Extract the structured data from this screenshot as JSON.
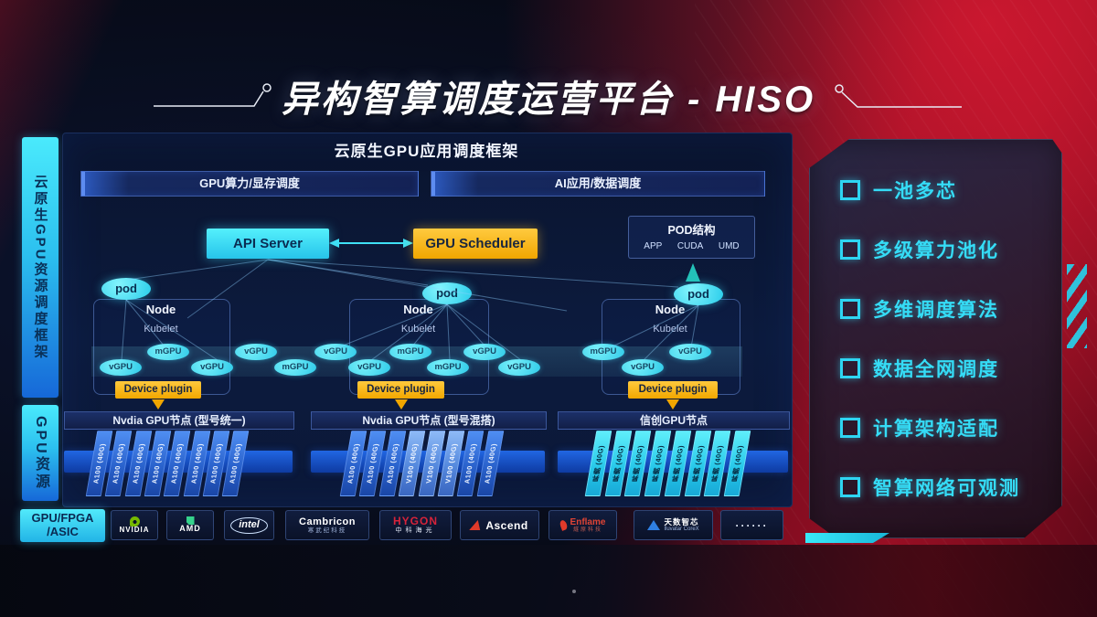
{
  "title": {
    "text": "异构智算调度运营平台 - HISO"
  },
  "sidebar": {
    "top": "云原生GPU资源调度框架",
    "bottom": "GPU资源"
  },
  "framework": {
    "header": "云原生GPU应用调度框架",
    "top_bars": [
      "GPU算力/显存调度",
      "AI应用/数据调度"
    ],
    "api_server": "API Server",
    "gpu_scheduler": "GPU Scheduler",
    "pod_box": {
      "title": "POD结构",
      "items": [
        "APP",
        "CUDA",
        "UMD"
      ]
    },
    "node_groups": [
      {
        "title": "Node",
        "agent": "Kubelet",
        "pod": "pod"
      },
      {
        "title": "Node",
        "agent": "Kubelet",
        "pod": "pod"
      },
      {
        "title": "Node",
        "agent": "Kubelet",
        "pod": "pod"
      }
    ],
    "device_plugin_label": "Device plugin",
    "gpu_units": [
      "vGPU",
      "mGPU",
      "vGPU",
      "vGPU",
      "mGPU",
      "vGPU",
      "vGPU",
      "mGPU",
      "mGPU",
      "vGPU",
      "vGPU",
      "mGPU",
      "vGPU",
      "vGPU"
    ]
  },
  "gpu_rows": [
    {
      "header": "Nvdia GPU节点 (型号统一)",
      "cards": [
        {
          "label": "A100 (40G)",
          "variant": "blue"
        },
        {
          "label": "A100 (40G)",
          "variant": "blue"
        },
        {
          "label": "A100 (40G)",
          "variant": "blue"
        },
        {
          "label": "A100 (40G)",
          "variant": "blue"
        },
        {
          "label": "A100 (40G)",
          "variant": "blue"
        },
        {
          "label": "A100 (40G)",
          "variant": "blue"
        },
        {
          "label": "A100 (40G)",
          "variant": "blue"
        },
        {
          "label": "A100 (40G)",
          "variant": "blue"
        }
      ]
    },
    {
      "header": "Nvdia GPU节点 (型号混搭)",
      "cards": [
        {
          "label": "A100 (40G)",
          "variant": "blue"
        },
        {
          "label": "A100 (40G)",
          "variant": "blue"
        },
        {
          "label": "A100 (40G)",
          "variant": "blue"
        },
        {
          "label": "V100 (40G)",
          "variant": "light"
        },
        {
          "label": "V100 (40G)",
          "variant": "light"
        },
        {
          "label": "V100 (40G)",
          "variant": "light"
        },
        {
          "label": "A100 (40G)",
          "variant": "blue"
        },
        {
          "label": "A100 (40G)",
          "variant": "blue"
        }
      ]
    },
    {
      "header": "信创GPU节点",
      "cards": [
        {
          "label": "昇腾 (40G)",
          "variant": "cyan"
        },
        {
          "label": "昇腾 (40G)",
          "variant": "cyan"
        },
        {
          "label": "昇腾 (40G)",
          "variant": "cyan"
        },
        {
          "label": "昇腾 (40G)",
          "variant": "cyan"
        },
        {
          "label": "昇腾 (40G)",
          "variant": "cyan"
        },
        {
          "label": "昇腾 (40G)",
          "variant": "cyan"
        },
        {
          "label": "昇腾 (40G)",
          "variant": "cyan"
        },
        {
          "label": "昇腾 (40G)",
          "variant": "cyan"
        }
      ]
    }
  ],
  "vendor_bar": {
    "lead": {
      "line1": "GPU/FPGA",
      "line2": "/ASIC"
    },
    "vendors": [
      {
        "type": "nvidia",
        "name": "NVIDIA"
      },
      {
        "type": "amd",
        "name": "AMD"
      },
      {
        "type": "intel",
        "name": "intel"
      },
      {
        "type": "cambricon",
        "name": "Cambricon",
        "sub": "寒武纪科技"
      },
      {
        "type": "hygon",
        "name": "HYGON",
        "sub": "中科海光"
      },
      {
        "type": "ascend",
        "name": "Ascend"
      },
      {
        "type": "enflame",
        "name": "Enflame",
        "sub": "燧原科技"
      },
      {
        "type": "iluvatar",
        "name": "天数智芯",
        "sub": "Iluvatar CoreX"
      },
      {
        "type": "dots",
        "name": "······"
      }
    ]
  },
  "features": [
    "一池多芯",
    "多级算力池化",
    "多维调度算法",
    "数据全网调度",
    "计算架构适配",
    "智算网络可观测"
  ],
  "colors": {
    "accent_cyan": "#35e2f2",
    "accent_yellow": "#f2a700",
    "bg_red": "#990f24",
    "panel_navy": "#0b1838"
  }
}
